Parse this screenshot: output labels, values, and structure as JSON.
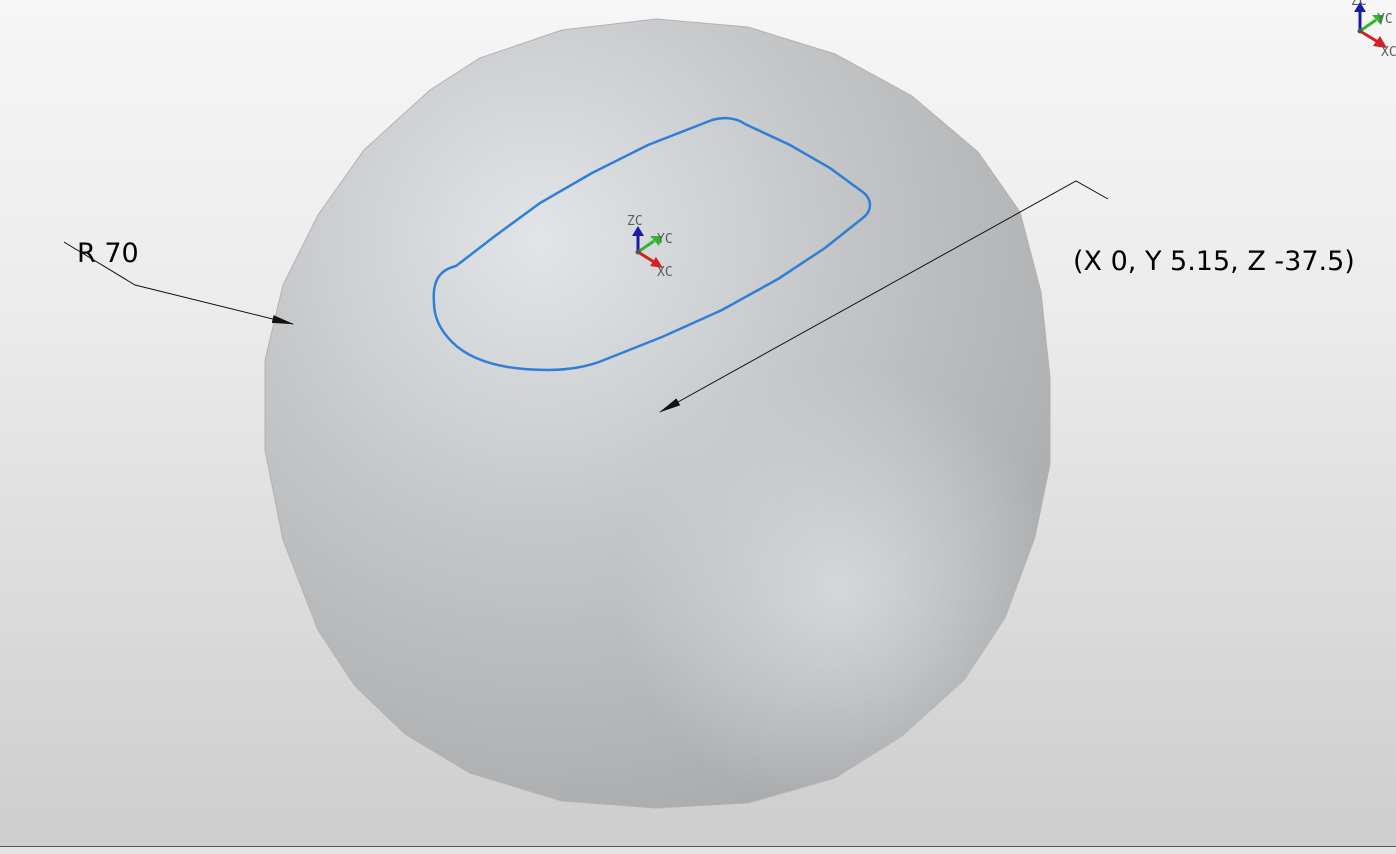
{
  "viewport": {
    "radius_label": "R 70",
    "point_label": "(X 0, Y 5.15, Z -37.5)"
  },
  "triad_center": {
    "z_label": "ZC",
    "y_label": "YC",
    "x_label": "XC"
  },
  "triad_corner": {
    "z_label": "ZC",
    "y_label": "YC",
    "x_label": "XC"
  },
  "colors": {
    "curve": "#2f7fd6",
    "z_axis": "#1a1aa8",
    "y_axis": "#2fb52f",
    "x_axis": "#d42020"
  }
}
